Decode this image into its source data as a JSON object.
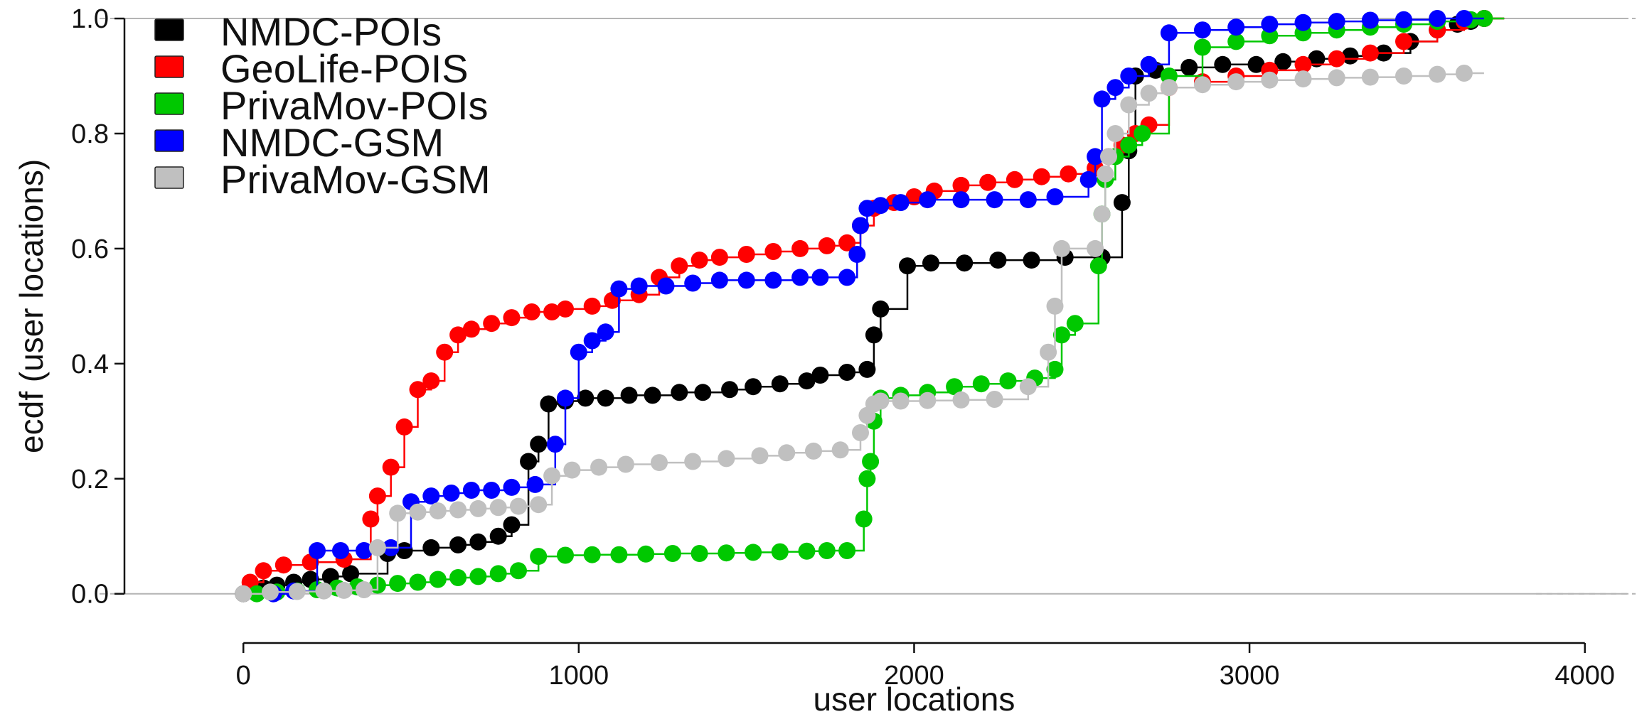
{
  "chart_data": {
    "type": "scatter",
    "title": "",
    "xlabel": "user locations",
    "ylabel": "ecdf (user locations)",
    "xlim": [
      -450,
      4130
    ],
    "ylim": [
      -0.03,
      1.005
    ],
    "xticks": [
      0,
      1000,
      2000,
      3000,
      4000
    ],
    "xtick_labels": [
      "0",
      "1000",
      "2000",
      "3000",
      "4000"
    ],
    "yticks": [
      0,
      0.2,
      0.4,
      0.6,
      0.8,
      1.0
    ],
    "ytick_labels": [
      "0.0",
      "0.2",
      "0.4",
      "0.6",
      "0.8",
      "1.0"
    ],
    "reference_lines": [
      0,
      1
    ],
    "grid": false,
    "legend_position": "top-left",
    "series": [
      {
        "name": "NMDC-POIs",
        "color": "#000000",
        "x": [
          0,
          60,
          100,
          150,
          200,
          260,
          320,
          430,
          480,
          560,
          640,
          700,
          760,
          800,
          850,
          880,
          910,
          960,
          1020,
          1080,
          1150,
          1220,
          1300,
          1370,
          1450,
          1520,
          1600,
          1680,
          1720,
          1800,
          1860,
          1880,
          1900,
          1980,
          2050,
          2150,
          2250,
          2350,
          2450,
          2560,
          2620,
          2640,
          2660,
          2720,
          2820,
          2920,
          3020,
          3100,
          3200,
          3300,
          3400,
          3480,
          3560,
          3620,
          3660,
          3700
        ],
        "y": [
          0,
          0.01,
          0.015,
          0.02,
          0.025,
          0.03,
          0.035,
          0.07,
          0.075,
          0.08,
          0.085,
          0.09,
          0.1,
          0.12,
          0.23,
          0.26,
          0.33,
          0.335,
          0.34,
          0.34,
          0.345,
          0.345,
          0.35,
          0.35,
          0.355,
          0.36,
          0.365,
          0.37,
          0.38,
          0.385,
          0.39,
          0.45,
          0.495,
          0.57,
          0.575,
          0.575,
          0.58,
          0.58,
          0.585,
          0.585,
          0.68,
          0.77,
          0.9,
          0.91,
          0.915,
          0.92,
          0.92,
          0.925,
          0.93,
          0.935,
          0.94,
          0.96,
          0.98,
          0.99,
          0.995,
          1.0
        ]
      },
      {
        "name": "GeoLife-POIS",
        "color": "#ff0000",
        "x": [
          20,
          60,
          120,
          200,
          300,
          380,
          400,
          440,
          480,
          520,
          560,
          600,
          640,
          680,
          740,
          800,
          860,
          920,
          960,
          1040,
          1100,
          1180,
          1240,
          1300,
          1360,
          1420,
          1500,
          1580,
          1660,
          1740,
          1800,
          1840,
          1880,
          1940,
          2000,
          2060,
          2140,
          2220,
          2300,
          2380,
          2460,
          2540,
          2580,
          2620,
          2660,
          2700,
          2760,
          2860,
          2960,
          3060,
          3160,
          3260,
          3360,
          3460,
          3560,
          3640,
          3700
        ],
        "y": [
          0.02,
          0.04,
          0.05,
          0.055,
          0.06,
          0.13,
          0.17,
          0.22,
          0.29,
          0.355,
          0.37,
          0.42,
          0.45,
          0.46,
          0.47,
          0.48,
          0.49,
          0.49,
          0.495,
          0.5,
          0.51,
          0.52,
          0.55,
          0.57,
          0.58,
          0.585,
          0.59,
          0.595,
          0.6,
          0.605,
          0.61,
          0.64,
          0.67,
          0.68,
          0.69,
          0.7,
          0.71,
          0.715,
          0.72,
          0.725,
          0.73,
          0.74,
          0.76,
          0.78,
          0.8,
          0.815,
          0.88,
          0.89,
          0.9,
          0.91,
          0.92,
          0.93,
          0.94,
          0.96,
          0.98,
          0.995,
          1.0
        ]
      },
      {
        "name": "PrivaMov-POIs",
        "color": "#00c800",
        "x": [
          40,
          100,
          160,
          220,
          280,
          340,
          400,
          460,
          520,
          580,
          640,
          700,
          760,
          820,
          880,
          960,
          1040,
          1120,
          1200,
          1280,
          1360,
          1440,
          1520,
          1600,
          1680,
          1740,
          1800,
          1850,
          1860,
          1870,
          1880,
          1900,
          1960,
          2040,
          2120,
          2200,
          2280,
          2360,
          2420,
          2440,
          2480,
          2550,
          2560,
          2570,
          2600,
          2640,
          2680,
          2760,
          2860,
          2960,
          3060,
          3160,
          3260,
          3360,
          3460,
          3560,
          3660,
          3700
        ],
        "y": [
          0,
          0.003,
          0.005,
          0.007,
          0.01,
          0.012,
          0.015,
          0.018,
          0.02,
          0.025,
          0.028,
          0.03,
          0.035,
          0.04,
          0.065,
          0.067,
          0.068,
          0.068,
          0.069,
          0.07,
          0.07,
          0.071,
          0.072,
          0.073,
          0.074,
          0.075,
          0.075,
          0.13,
          0.2,
          0.23,
          0.3,
          0.34,
          0.345,
          0.35,
          0.36,
          0.365,
          0.37,
          0.375,
          0.39,
          0.45,
          0.47,
          0.57,
          0.66,
          0.72,
          0.76,
          0.78,
          0.8,
          0.9,
          0.95,
          0.96,
          0.97,
          0.975,
          0.98,
          0.985,
          0.99,
          0.995,
          0.998,
          1.0
        ]
      },
      {
        "name": "NMDC-GSM",
        "color": "#0000ff",
        "x": [
          90,
          150,
          220,
          290,
          360,
          440,
          500,
          560,
          620,
          680,
          740,
          800,
          870,
          930,
          960,
          1000,
          1040,
          1080,
          1120,
          1180,
          1260,
          1340,
          1420,
          1500,
          1580,
          1660,
          1720,
          1800,
          1830,
          1840,
          1860,
          1900,
          1960,
          2040,
          2140,
          2240,
          2340,
          2420,
          2520,
          2540,
          2560,
          2600,
          2640,
          2700,
          2760,
          2860,
          2960,
          3060,
          3160,
          3260,
          3360,
          3460,
          3560,
          3640
        ],
        "y": [
          0,
          0.005,
          0.075,
          0.075,
          0.075,
          0.08,
          0.16,
          0.17,
          0.175,
          0.18,
          0.18,
          0.185,
          0.19,
          0.26,
          0.34,
          0.42,
          0.44,
          0.455,
          0.53,
          0.535,
          0.535,
          0.54,
          0.545,
          0.545,
          0.545,
          0.55,
          0.55,
          0.55,
          0.59,
          0.64,
          0.67,
          0.675,
          0.68,
          0.685,
          0.685,
          0.685,
          0.685,
          0.69,
          0.72,
          0.76,
          0.86,
          0.88,
          0.9,
          0.92,
          0.975,
          0.98,
          0.985,
          0.99,
          0.993,
          0.995,
          0.997,
          0.998,
          1.0,
          1.0
        ]
      },
      {
        "name": "PrivaMov-GSM",
        "color": "#c0c0c0",
        "x": [
          0,
          80,
          160,
          240,
          300,
          360,
          400,
          460,
          520,
          580,
          640,
          700,
          760,
          820,
          880,
          920,
          980,
          1060,
          1140,
          1240,
          1340,
          1440,
          1540,
          1620,
          1700,
          1780,
          1840,
          1860,
          1880,
          1900,
          1960,
          2040,
          2140,
          2240,
          2340,
          2400,
          2420,
          2440,
          2540,
          2560,
          2570,
          2580,
          2600,
          2640,
          2700,
          2760,
          2860,
          2960,
          3060,
          3160,
          3260,
          3360,
          3460,
          3560,
          3640
        ],
        "y": [
          0,
          0.003,
          0.004,
          0.005,
          0.006,
          0.007,
          0.08,
          0.14,
          0.142,
          0.144,
          0.146,
          0.148,
          0.15,
          0.152,
          0.155,
          0.205,
          0.215,
          0.22,
          0.225,
          0.228,
          0.23,
          0.235,
          0.24,
          0.245,
          0.248,
          0.25,
          0.28,
          0.31,
          0.33,
          0.335,
          0.335,
          0.336,
          0.337,
          0.338,
          0.36,
          0.42,
          0.5,
          0.6,
          0.6,
          0.66,
          0.73,
          0.76,
          0.8,
          0.85,
          0.87,
          0.88,
          0.885,
          0.89,
          0.893,
          0.895,
          0.897,
          0.898,
          0.9,
          0.903,
          0.905
        ]
      }
    ]
  }
}
